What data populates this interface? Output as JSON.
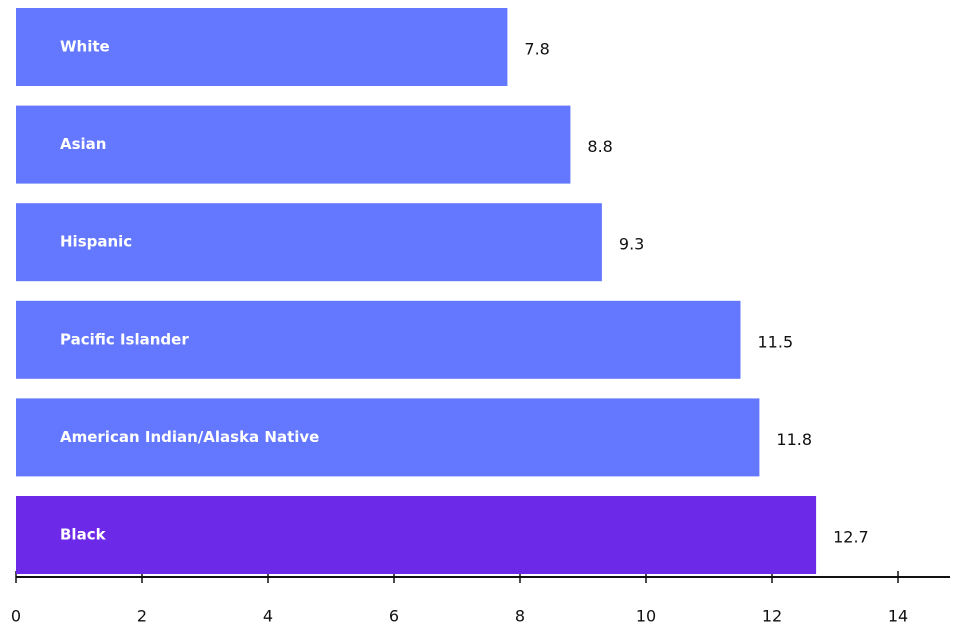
{
  "chart_data": {
    "type": "barh",
    "categories": [
      "White",
      "Asian",
      "Hispanic",
      "Pacific Islander",
      "American Indian/Alaska Native",
      "Black"
    ],
    "values": [
      7.8,
      8.8,
      9.3,
      11.5,
      11.8,
      12.7
    ],
    "colors": [
      "#6478ff",
      "#6478ff",
      "#6478ff",
      "#6478ff",
      "#6478ff",
      "#6c2ae8"
    ],
    "xlim": [
      0,
      14
    ],
    "xticks": [
      0,
      2,
      4,
      6,
      8,
      10,
      12,
      14
    ]
  }
}
